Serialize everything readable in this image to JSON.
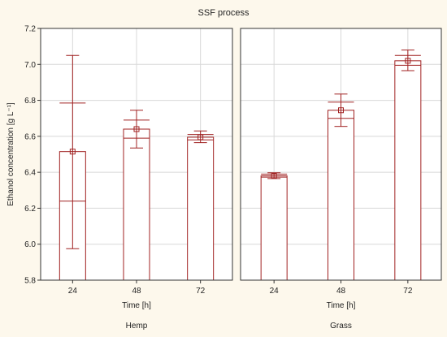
{
  "chart_data": {
    "type": "bar",
    "title": "SSF process",
    "ylabel": "Ethanol concentration [g L⁻¹]",
    "xlabel": "Time [h]",
    "ylim": [
      5.8,
      7.2
    ],
    "yticks": [
      "5.8",
      "6.0",
      "6.2",
      "6.4",
      "6.6",
      "6.8",
      "7.0",
      "7.2"
    ],
    "grid": true,
    "colors": {
      "bar_fill": "#ffffff",
      "bar_stroke": "#a02020",
      "grid": "#d8d8d8",
      "panel_bg": "#ffffff"
    },
    "panels": [
      {
        "name": "Hemp",
        "categories": [
          "24",
          "48",
          "72"
        ],
        "values": [
          6.515,
          6.64,
          6.595
        ],
        "ci": [
          [
            6.24,
            6.785
          ],
          [
            6.59,
            6.69
          ],
          [
            6.58,
            6.61
          ]
        ],
        "minmax": [
          [
            5.975,
            7.05
          ],
          [
            6.535,
            6.745
          ],
          [
            6.565,
            6.63
          ]
        ]
      },
      {
        "name": "Grass",
        "categories": [
          "24",
          "48",
          "72"
        ],
        "values": [
          6.38,
          6.745,
          7.02
        ],
        "ci": [
          [
            6.373,
            6.39
          ],
          [
            6.7,
            6.79
          ],
          [
            6.995,
            7.05
          ]
        ],
        "minmax": [
          [
            6.365,
            6.397
          ],
          [
            6.655,
            6.835
          ],
          [
            6.965,
            7.08
          ]
        ]
      }
    ]
  }
}
